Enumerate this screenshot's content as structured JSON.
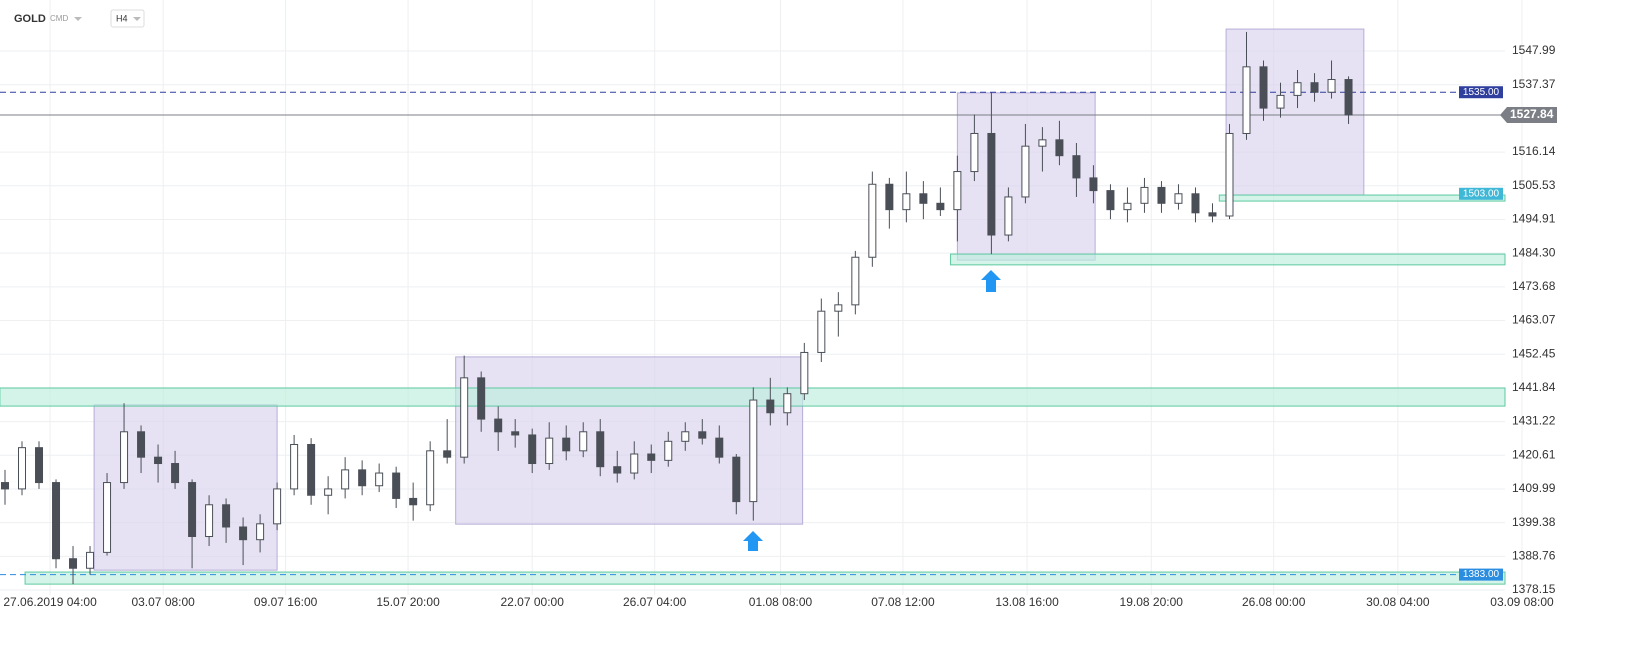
{
  "header": {
    "symbol": "GOLD",
    "market": "CMD",
    "timeframe": "H4"
  },
  "chart_data": {
    "type": "candlestick",
    "up_color": "#ffffff",
    "down_color": "#4a4f57",
    "wick_color": "#4a4f57",
    "open": [
      1412,
      1410,
      1423,
      1412,
      1388,
      1385,
      1390,
      1412,
      1428,
      1420,
      1418,
      1412,
      1395,
      1405,
      1398,
      1394,
      1399,
      1410,
      1424,
      1408,
      1410,
      1416,
      1411,
      1415,
      1407,
      1405,
      1422,
      1420,
      1445,
      1432,
      1428,
      1427,
      1418,
      1426,
      1422,
      1428,
      1417,
      1415,
      1421,
      1419,
      1425,
      1428,
      1426,
      1420,
      1406,
      1438,
      1434,
      1440,
      1453,
      1466,
      1468,
      1483,
      1506,
      1498,
      1503,
      1500,
      1498,
      1510,
      1522,
      1490,
      1502,
      1518,
      1520,
      1515,
      1508,
      1504,
      1498,
      1500,
      1505,
      1500,
      1503,
      1497,
      1496,
      1522,
      1543,
      1530,
      1534,
      1538,
      1535,
      1539
    ],
    "high": [
      1416,
      1425,
      1425,
      1413,
      1392,
      1392,
      1415,
      1437,
      1430,
      1424,
      1422,
      1413,
      1408,
      1407,
      1401,
      1402,
      1412,
      1427,
      1426,
      1414,
      1420,
      1419,
      1418,
      1417,
      1412,
      1425,
      1432,
      1452,
      1447,
      1436,
      1432,
      1429,
      1431,
      1430,
      1431,
      1432,
      1422,
      1425,
      1424,
      1428,
      1431,
      1432,
      1430,
      1421,
      1442,
      1445,
      1442,
      1456,
      1470,
      1472,
      1485,
      1510,
      1508,
      1510,
      1507,
      1505,
      1515,
      1528,
      1535,
      1505,
      1525,
      1524,
      1526,
      1519,
      1512,
      1506,
      1505,
      1508,
      1507,
      1506,
      1505,
      1500,
      1525,
      1554,
      1545,
      1538,
      1542,
      1541,
      1545,
      1540
    ],
    "low": [
      1405,
      1408,
      1410,
      1385,
      1380,
      1383,
      1389,
      1410,
      1415,
      1412,
      1410,
      1385,
      1392,
      1393,
      1386,
      1390,
      1397,
      1408,
      1405,
      1402,
      1407,
      1408,
      1409,
      1404,
      1400,
      1403,
      1418,
      1418,
      1428,
      1422,
      1423,
      1415,
      1416,
      1419,
      1420,
      1414,
      1412,
      1413,
      1415,
      1417,
      1422,
      1424,
      1418,
      1402,
      1400,
      1430,
      1430,
      1438,
      1450,
      1458,
      1465,
      1480,
      1492,
      1494,
      1495,
      1496,
      1488,
      1507,
      1484,
      1488,
      1500,
      1510,
      1512,
      1502,
      1500,
      1495,
      1494,
      1497,
      1497,
      1498,
      1494,
      1494,
      1495,
      1520,
      1526,
      1527,
      1530,
      1532,
      1533,
      1525
    ],
    "close": [
      1410,
      1423,
      1412,
      1388,
      1385,
      1390,
      1412,
      1428,
      1420,
      1418,
      1412,
      1395,
      1405,
      1398,
      1394,
      1399,
      1410,
      1424,
      1408,
      1410,
      1416,
      1411,
      1415,
      1407,
      1405,
      1422,
      1420,
      1445,
      1432,
      1428,
      1427,
      1418,
      1426,
      1422,
      1428,
      1417,
      1415,
      1421,
      1419,
      1425,
      1428,
      1426,
      1420,
      1406,
      1438,
      1434,
      1440,
      1453,
      1466,
      1468,
      1483,
      1506,
      1498,
      1503,
      1500,
      1498,
      1510,
      1522,
      1490,
      1502,
      1518,
      1520,
      1515,
      1508,
      1504,
      1498,
      1500,
      1505,
      1500,
      1503,
      1497,
      1496,
      1522,
      1543,
      1530,
      1534,
      1538,
      1535,
      1539,
      1527.84
    ],
    "xlim": [
      0,
      88.2
    ],
    "ylim": [
      1376.57,
      1560.91
    ],
    "grid": true,
    "xticks": [
      {
        "value": 2.65,
        "label": "27.06.2019  04:00"
      },
      {
        "value": 9.3,
        "label": "03.07  08:00"
      },
      {
        "value": 16.5,
        "label": "09.07  16:00"
      },
      {
        "value": 23.7,
        "label": "15.07  20:00"
      },
      {
        "value": 31,
        "label": "22.07  00:00"
      },
      {
        "value": 38.2,
        "label": "26.07  04:00"
      },
      {
        "value": 45.6,
        "label": "01.08  08:00"
      },
      {
        "value": 52.8,
        "label": "07.08  12:00"
      },
      {
        "value": 60.1,
        "label": "13.08  16:00"
      },
      {
        "value": 67.4,
        "label": "19.08  20:00"
      },
      {
        "value": 74.6,
        "label": "26.08  00:00"
      },
      {
        "value": 81.9,
        "label": "30.08  04:00"
      },
      {
        "value": 89.2,
        "label": "03.09  08:00"
      }
    ],
    "yticks": [
      1547.99,
      1537.37,
      1516.14,
      1505.53,
      1494.91,
      {
        "value": 1484.3,
        "label": "1484.30"
      },
      1473.68,
      1463.07,
      1452.45,
      1441.84,
      1431.22,
      1420.61,
      1409.99,
      1399.38,
      1388.76,
      1378.15
    ],
    "boxes": [
      {
        "x": [
          5.24,
          16.0
        ],
        "y": [
          1384.4,
          1436.5
        ],
        "color": "#d9d3ee"
      },
      {
        "x": [
          26.5,
          46.9
        ],
        "y": [
          1398.9,
          1451.6
        ],
        "color": "#d9d3ee"
      },
      {
        "x": [
          56.0,
          64.1
        ],
        "y": [
          1482.1,
          1534.8
        ],
        "color": "#d9d3ee"
      },
      {
        "x": [
          71.8,
          79.9
        ],
        "y": [
          1502.6,
          1554.9
        ],
        "color": "#d9d3ee"
      }
    ],
    "zones": [
      {
        "x": [
          -0.3,
          88.2
        ],
        "y": [
          1436.1,
          1441.8
        ],
        "color": "#bdeedd"
      },
      {
        "x": [
          1.18,
          88.2
        ],
        "y": [
          1380.0,
          1383.8
        ],
        "color": "#bdeedd"
      },
      {
        "x": [
          55.6,
          88.2
        ],
        "y": [
          1480.6,
          1484.0
        ],
        "color": "#bdeedd"
      },
      {
        "x": [
          71.4,
          88.2
        ],
        "y": [
          1500.7,
          1502.6
        ],
        "color": "#bdeedd"
      }
    ],
    "levels": [
      {
        "value": 1535,
        "label": "1535.00",
        "color": "#2f3f9e",
        "style": "dashed"
      },
      {
        "value": 1503,
        "label": "1503.00",
        "color": "#3fb7d6",
        "style": "none"
      },
      {
        "value": 1383,
        "label": "1383.00",
        "color": "#2a8de0",
        "style": "dashed"
      }
    ],
    "last_price": {
      "value": 1527.84,
      "label": "1527.84",
      "color": "#7b7f85"
    }
  }
}
